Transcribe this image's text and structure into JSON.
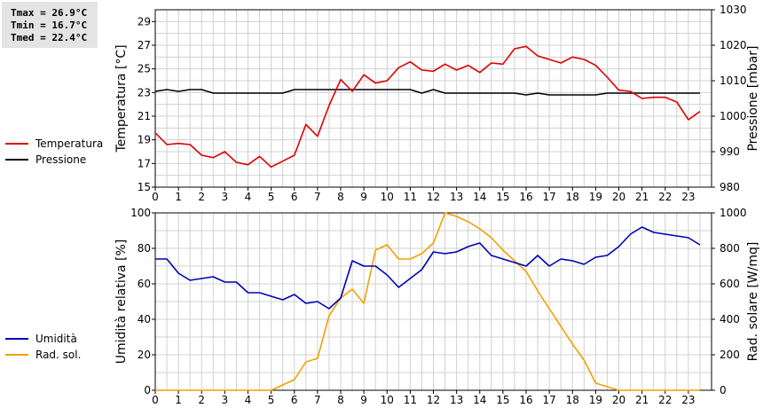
{
  "stats": {
    "tmax": "Tmax = 26.9°C",
    "tmin": "Tmin = 16.7°C",
    "tmed": "Tmed = 22.4°C"
  },
  "colors": {
    "temperature": "#dd0000",
    "pressure": "#000000",
    "humidity": "#0000b4",
    "radiation": "#f2a000",
    "grid": "#d0d0d0"
  },
  "legend_top": [
    {
      "label": "Temperatura",
      "color": "#dd0000"
    },
    {
      "label": "Pressione",
      "color": "#000000"
    }
  ],
  "legend_bottom": [
    {
      "label": "Umidità",
      "color": "#0000b4"
    },
    {
      "label": "Rad. sol.",
      "color": "#f2a000"
    }
  ],
  "chart_data": [
    {
      "type": "line",
      "ylabel": "Temperatura [°C]",
      "y2label": "Pressione [mbar]",
      "xlim": [
        0,
        24
      ],
      "ylim": [
        15,
        30
      ],
      "y2lim": [
        980,
        1030
      ],
      "xticks": [
        0,
        1,
        2,
        3,
        4,
        5,
        6,
        7,
        8,
        9,
        10,
        11,
        12,
        13,
        14,
        15,
        16,
        17,
        18,
        19,
        20,
        21,
        22,
        23
      ],
      "yticks": [
        15,
        17,
        19,
        21,
        23,
        25,
        27,
        29
      ],
      "y2ticks": [
        980,
        990,
        1000,
        1010,
        1020,
        1030
      ],
      "grid": true,
      "legend_position": "left",
      "series": [
        {
          "name": "Temperatura",
          "axis": "left",
          "x": [
            0,
            0.5,
            1,
            1.5,
            2,
            2.5,
            3,
            3.5,
            4,
            4.5,
            5,
            5.5,
            6,
            6.5,
            7,
            7.5,
            8,
            8.5,
            9,
            9.5,
            10,
            10.5,
            11,
            11.5,
            12,
            12.5,
            13,
            13.5,
            14,
            14.5,
            15,
            15.5,
            16,
            16.5,
            17,
            17.5,
            18,
            18.5,
            19,
            19.5,
            20,
            20.5,
            21,
            21.5,
            22,
            22.5,
            23,
            23.5
          ],
          "values": [
            19.6,
            18.6,
            18.7,
            18.6,
            17.7,
            17.5,
            18.0,
            17.1,
            16.9,
            17.6,
            16.7,
            17.2,
            17.7,
            20.3,
            19.3,
            21.9,
            24.1,
            23.1,
            24.5,
            23.8,
            24.0,
            25.1,
            25.6,
            24.9,
            24.8,
            25.4,
            24.9,
            25.3,
            24.7,
            25.5,
            25.4,
            26.7,
            26.9,
            26.1,
            25.8,
            25.5,
            26.0,
            25.8,
            25.3,
            24.3,
            23.2,
            23.1,
            22.5,
            22.6,
            22.6,
            22.2,
            20.7,
            21.4
          ]
        },
        {
          "name": "Pressione",
          "axis": "right",
          "x": [
            0,
            0.5,
            1,
            1.5,
            2,
            2.5,
            3,
            3.5,
            4,
            4.5,
            5,
            5.5,
            6,
            6.5,
            7,
            7.5,
            8,
            8.5,
            9,
            9.5,
            10,
            10.5,
            11,
            11.5,
            12,
            12.5,
            13,
            13.5,
            14,
            14.5,
            15,
            15.5,
            16,
            16.5,
            17,
            17.5,
            18,
            18.5,
            19,
            19.5,
            20,
            20.5,
            21,
            21.5,
            22,
            22.5,
            23,
            23.5
          ],
          "values": [
            1007,
            1007.5,
            1007,
            1007.5,
            1007.5,
            1006.5,
            1006.5,
            1006.5,
            1006.5,
            1006.5,
            1006.5,
            1006.5,
            1007.5,
            1007.5,
            1007.5,
            1007.5,
            1007.5,
            1007.5,
            1007.5,
            1007.5,
            1007.5,
            1007.5,
            1007.5,
            1006.5,
            1007.5,
            1006.5,
            1006.5,
            1006.5,
            1006.5,
            1006.5,
            1006.5,
            1006.5,
            1006,
            1006.5,
            1006,
            1006,
            1006,
            1006,
            1006,
            1006.5,
            1006.5,
            1006.5,
            1006.5,
            1006.5,
            1006.5,
            1006.5,
            1006.5,
            1006.5
          ]
        }
      ]
    },
    {
      "type": "line",
      "ylabel": "Umidità relativa [%]",
      "y2label": "Rad. solare [W/mq]",
      "xlim": [
        0,
        24
      ],
      "ylim": [
        0,
        100
      ],
      "y2lim": [
        0,
        1000
      ],
      "xticks": [
        0,
        1,
        2,
        3,
        4,
        5,
        6,
        7,
        8,
        9,
        10,
        11,
        12,
        13,
        14,
        15,
        16,
        17,
        18,
        19,
        20,
        21,
        22,
        23
      ],
      "yticks": [
        0,
        20,
        40,
        60,
        80,
        100
      ],
      "y2ticks": [
        0,
        200,
        400,
        600,
        800,
        1000
      ],
      "grid": true,
      "legend_position": "left",
      "series": [
        {
          "name": "Umidità",
          "axis": "left",
          "x": [
            0,
            0.5,
            1,
            1.5,
            2,
            2.5,
            3,
            3.5,
            4,
            4.5,
            5,
            5.5,
            6,
            6.5,
            7,
            7.5,
            8,
            8.5,
            9,
            9.5,
            10,
            10.5,
            11,
            11.5,
            12,
            12.5,
            13,
            13.5,
            14,
            14.5,
            15,
            15.5,
            16,
            16.5,
            17,
            17.5,
            18,
            18.5,
            19,
            19.5,
            20,
            20.5,
            21,
            21.5,
            22,
            22.5,
            23,
            23.5
          ],
          "values": [
            74,
            74,
            66,
            62,
            63,
            64,
            61,
            61,
            55,
            55,
            53,
            51,
            54,
            49,
            50,
            46,
            52,
            73,
            70,
            70,
            65,
            58,
            63,
            68,
            78,
            77,
            78,
            81,
            83,
            76,
            74,
            72,
            70,
            76,
            70,
            74,
            73,
            71,
            75,
            76,
            81,
            88,
            92,
            89,
            88,
            87,
            86,
            82
          ]
        },
        {
          "name": "Rad. sol.",
          "axis": "right",
          "x": [
            0,
            0.5,
            1,
            1.5,
            2,
            2.5,
            3,
            3.5,
            4,
            4.5,
            5,
            5.5,
            6,
            6.5,
            7,
            7.5,
            8,
            8.5,
            9,
            9.5,
            10,
            10.5,
            11,
            11.5,
            12,
            12.5,
            13,
            13.5,
            14,
            14.5,
            15,
            15.5,
            16,
            16.5,
            17,
            17.5,
            18,
            18.5,
            19,
            19.5,
            20,
            20.5,
            21,
            21.5,
            22,
            22.5,
            23,
            23.5
          ],
          "values": [
            0,
            0,
            0,
            0,
            0,
            0,
            0,
            0,
            0,
            0,
            0,
            30,
            60,
            160,
            180,
            420,
            520,
            570,
            490,
            790,
            820,
            740,
            740,
            770,
            830,
            1000,
            980,
            950,
            910,
            860,
            790,
            730,
            670,
            560,
            460,
            360,
            260,
            170,
            40,
            20,
            0,
            0,
            0,
            0,
            0,
            0,
            0,
            0
          ]
        }
      ]
    }
  ]
}
